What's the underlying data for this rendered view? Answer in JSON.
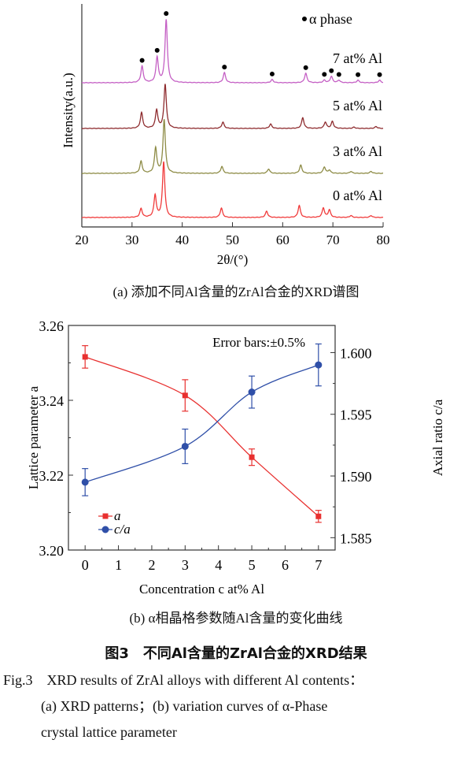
{
  "chart_data": [
    {
      "type": "line",
      "subplot": "(a)",
      "xlabel": "2θ/(°)",
      "ylabel": "Intensity(a.u.)",
      "xlim": [
        20,
        80
      ],
      "xticks": [
        "20",
        "30",
        "40",
        "50",
        "60",
        "70",
        "80"
      ],
      "legend_marker_label": "α phase",
      "alpha_phase_marker_positions": [
        32.0,
        35.0,
        36.8,
        48.4,
        57.9,
        64.6,
        68.3,
        69.7,
        71.2,
        75.0,
        79.3
      ],
      "intensity_note": "peak heights are relative intensities, stacked patterns",
      "series": [
        {
          "name": "7 at% Al",
          "color": "#c45fc4",
          "peaks": [
            [
              32.0,
              26
            ],
            [
              35.0,
              40
            ],
            [
              36.8,
              100
            ],
            [
              48.4,
              16
            ],
            [
              57.9,
              5
            ],
            [
              64.6,
              15
            ],
            [
              68.3,
              4
            ],
            [
              69.7,
              10
            ],
            [
              71.2,
              4
            ],
            [
              75.0,
              4
            ],
            [
              79.3,
              4
            ]
          ]
        },
        {
          "name": "5 at% Al",
          "color": "#8e2b2e",
          "peaks": [
            [
              31.9,
              25
            ],
            [
              34.9,
              29
            ],
            [
              36.6,
              70
            ],
            [
              48.1,
              10
            ],
            [
              57.6,
              7
            ],
            [
              64.0,
              17
            ],
            [
              68.5,
              10
            ],
            [
              69.9,
              11
            ],
            [
              74.2,
              2
            ],
            [
              78.6,
              3
            ]
          ]
        },
        {
          "name": "3 at% Al",
          "color": "#8d8b45",
          "peaks": [
            [
              31.8,
              19
            ],
            [
              34.7,
              40
            ],
            [
              36.4,
              85
            ],
            [
              47.9,
              11
            ],
            [
              57.2,
              7
            ],
            [
              63.6,
              13
            ],
            [
              68.3,
              10
            ],
            [
              69.3,
              5
            ],
            [
              73.6,
              3
            ],
            [
              77.6,
              3
            ]
          ]
        },
        {
          "name": "0 at% Al",
          "color": "#f03a3a",
          "peaks": [
            [
              31.8,
              14
            ],
            [
              34.6,
              35
            ],
            [
              36.3,
              88
            ],
            [
              47.8,
              15
            ],
            [
              56.8,
              10
            ],
            [
              63.3,
              19
            ],
            [
              68.1,
              15
            ],
            [
              69.3,
              12
            ],
            [
              73.6,
              3
            ],
            [
              77.6,
              3
            ]
          ]
        }
      ]
    },
    {
      "type": "line",
      "subplot": "(b)",
      "xlabel": "Concentration c at% Al",
      "ylabel_left": "Lattice parameter a",
      "ylabel_right": "Axial ratio c/a",
      "xlim": [
        -0.5,
        7.5
      ],
      "ylim_left": [
        3.2,
        3.26
      ],
      "ylim_right": [
        1.584,
        1.6022
      ],
      "xticks": [
        "0",
        "1",
        "2",
        "3",
        "4",
        "5",
        "6",
        "7"
      ],
      "yticks_left": [
        "3.20",
        "3.22",
        "3.24",
        "3.26"
      ],
      "yticks_right": [
        "1.585",
        "1.590",
        "1.595",
        "1.600"
      ],
      "annotation": "Error bars:±0.5%",
      "legend_placement": "bottom-left",
      "series": [
        {
          "name": "a",
          "axis": "left",
          "color": "#e8302f",
          "marker": "square",
          "x": [
            0,
            3,
            5,
            7
          ],
          "y": [
            3.2516,
            3.2413,
            3.2248,
            3.209
          ],
          "err": [
            0.003,
            0.0042,
            0.0022,
            0.0016
          ]
        },
        {
          "name": "c/a",
          "axis": "right",
          "color": "#2f4fa8",
          "marker": "circle",
          "x": [
            0,
            3,
            5,
            7
          ],
          "y": [
            1.5895,
            1.5924,
            1.5968,
            1.599
          ],
          "err": [
            0.0011,
            0.0014,
            0.0013,
            0.0017
          ]
        }
      ]
    }
  ],
  "captions": {
    "a": "(a) 添加不同Al含量的ZrAl合金的XRD谱图",
    "b": "(b) α相晶格参数随Al含量的变化曲线",
    "figure_cn": "图3　不同Al含量的ZrAl合金的XRD结果",
    "figure_en_1": "Fig.3　XRD results of ZrAl alloys with different Al contents：",
    "figure_en_2": "(a) XRD patterns；(b) variation curves of α-Phase",
    "figure_en_3": "crystal lattice parameter"
  }
}
